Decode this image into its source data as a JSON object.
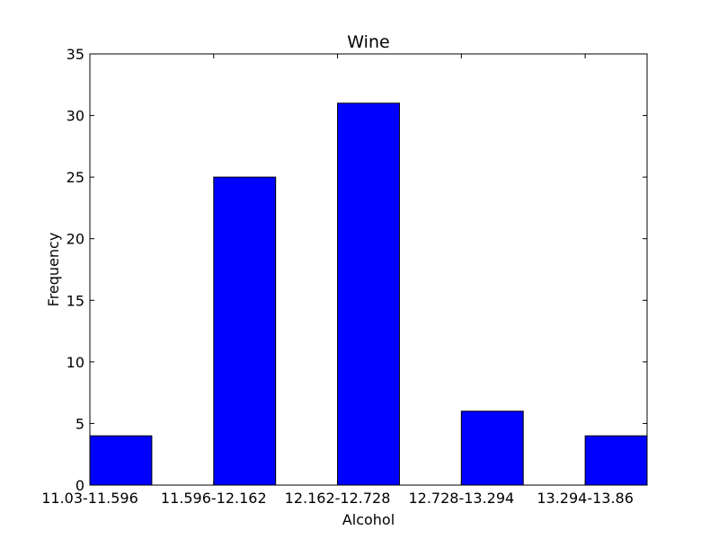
{
  "chart_data": {
    "type": "bar",
    "title": "Wine",
    "xlabel": "Alcohol",
    "ylabel": "Frequency",
    "categories": [
      "11.03-11.596",
      "11.596-12.162",
      "12.162-12.728",
      "12.728-13.294",
      "13.294-13.86"
    ],
    "values": [
      4,
      25,
      31,
      6,
      4
    ],
    "ylim": [
      0,
      35
    ],
    "yticks": [
      0,
      5,
      10,
      15,
      20,
      25,
      30,
      35
    ],
    "bar_color": "#0000ff",
    "grid": false,
    "legend": "none"
  }
}
